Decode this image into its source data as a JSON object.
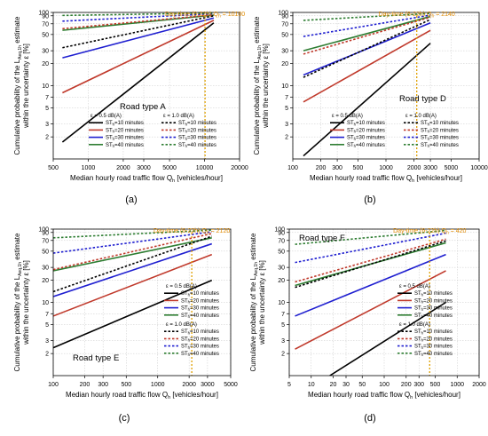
{
  "chart_data": [
    {
      "type": "line",
      "panel_label": "(a)",
      "road_type": "Road type A",
      "annotation": "Day-time (6-22h) Q",
      "annotation_sub": "h",
      "annotation_value": "= 10100",
      "marker_x": 10100,
      "xlabel": "Median hourly road traffic flow Q",
      "xlabel_sub": "h",
      "xlabel_unit": "[vehicles/hour]",
      "ylabel": "Cumulative probability of the L",
      "ylabel_sub": "Aeq,1h",
      "ylabel_2": "estimate",
      "ylabel_line2": "within the uncertainty ε [%]",
      "xscale": "log",
      "yscale": "log",
      "xlim": [
        500,
        20000
      ],
      "ylim": [
        1,
        100
      ],
      "xticks": [
        500,
        1000,
        2000,
        3000,
        5000,
        10000,
        20000
      ],
      "yticks": [
        2,
        3,
        5,
        7,
        10,
        20,
        30,
        50,
        70,
        90,
        100
      ],
      "legend_groups": [
        {
          "header": "ε = 0.5 dB(A)",
          "dash": "solid",
          "entries": [
            {
              "label": "ST=10 minutes",
              "color": "#000000",
              "x": [
                600,
                12000
              ],
              "y": [
                1.7,
                72
              ]
            },
            {
              "label": "ST=20 minutes",
              "color": "#c0392b",
              "x": [
                600,
                12000
              ],
              "y": [
                8,
                78
              ]
            },
            {
              "label": "ST=30 minutes",
              "color": "#1f1fd0",
              "x": [
                600,
                12000
              ],
              "y": [
                24,
                84
              ]
            },
            {
              "label": "ST=40 minutes",
              "color": "#2e7d32",
              "x": [
                600,
                12000
              ],
              "y": [
                57,
                92
              ]
            }
          ]
        },
        {
          "header": "ε = 1.0 dB(A)",
          "dash": "dash",
          "entries": [
            {
              "label": "ST=10 minutes",
              "color": "#000000",
              "x": [
                600,
                12000
              ],
              "y": [
                33,
                90
              ]
            },
            {
              "label": "ST=20 minutes",
              "color": "#c0392b",
              "x": [
                600,
                12000
              ],
              "y": [
                60,
                93
              ]
            },
            {
              "label": "ST=30 minutes",
              "color": "#1f1fd0",
              "x": [
                600,
                12000
              ],
              "y": [
                76,
                96
              ]
            },
            {
              "label": "ST=40 minutes",
              "color": "#2e7d32",
              "x": [
                600,
                12000
              ],
              "y": [
                91,
                98
              ]
            }
          ]
        }
      ]
    },
    {
      "type": "line",
      "panel_label": "(b)",
      "road_type": "Road type D",
      "annotation": "Day-time (6-22h) Q",
      "annotation_sub": "h",
      "annotation_value": "= 2140",
      "marker_x": 2140,
      "xlabel": "Median hourly road traffic flow Q",
      "xlabel_sub": "h",
      "xlabel_unit": "[vehicles/hour]",
      "ylabel": "Cumulative probability of the L",
      "ylabel_sub": "Aeq,1h",
      "ylabel_2": "estimate",
      "ylabel_line2": "within the uncertainty ε [%]",
      "xscale": "log",
      "yscale": "log",
      "xlim": [
        100,
        10000
      ],
      "ylim": [
        1,
        100
      ],
      "xticks": [
        100,
        200,
        300,
        500,
        1000,
        2000,
        3000,
        5000,
        10000
      ],
      "yticks": [
        2,
        3,
        5,
        7,
        10,
        20,
        30,
        50,
        70,
        90,
        100
      ],
      "legend_groups": [
        {
          "header": "ε = 0.5 dB(A)",
          "dash": "solid",
          "entries": [
            {
              "label": "ST=10 minutes",
              "color": "#000000",
              "x": [
                130,
                3000
              ],
              "y": [
                1.1,
                38
              ]
            },
            {
              "label": "ST=20 minutes",
              "color": "#c0392b",
              "x": [
                130,
                3000
              ],
              "y": [
                6,
                57
              ]
            },
            {
              "label": "ST=30 minutes",
              "color": "#1f1fd0",
              "x": [
                130,
                3000
              ],
              "y": [
                14,
                72
              ]
            },
            {
              "label": "ST=40 minutes",
              "color": "#2e7d32",
              "x": [
                130,
                3000
              ],
              "y": [
                30,
                88
              ]
            }
          ]
        },
        {
          "header": "ε = 1.0 dB(A)",
          "dash": "dash",
          "entries": [
            {
              "label": "ST=10 minutes",
              "color": "#000000",
              "x": [
                130,
                3000
              ],
              "y": [
                13,
                80
              ]
            },
            {
              "label": "ST=20 minutes",
              "color": "#c0392b",
              "x": [
                130,
                3000
              ],
              "y": [
                27,
                86
              ]
            },
            {
              "label": "ST=30 minutes",
              "color": "#1f1fd0",
              "x": [
                130,
                3000
              ],
              "y": [
                47,
                92
              ]
            },
            {
              "label": "ST=40 minutes",
              "color": "#2e7d32",
              "x": [
                130,
                3000
              ],
              "y": [
                78,
                97
              ]
            }
          ]
        }
      ]
    },
    {
      "type": "line",
      "panel_label": "(c)",
      "road_type": "Road type E",
      "annotation": "Day-time (6-22h) Q",
      "annotation_sub": "h",
      "annotation_value": "= 2120",
      "marker_x": 2120,
      "xlabel": "Median hourly road traffic flow Q",
      "xlabel_sub": "h",
      "xlabel_unit": "[vehicles/hour]",
      "ylabel": "Cumulative probability of the L",
      "ylabel_sub": "Aeq,1h",
      "ylabel_2": "estimate",
      "ylabel_line2": "within the uncertainty ε [%]",
      "xscale": "log",
      "yscale": "log",
      "xlim": [
        100,
        5000
      ],
      "ylim": [
        1,
        100
      ],
      "xticks": [
        100,
        200,
        300,
        500,
        1000,
        2000,
        3000,
        5000
      ],
      "yticks": [
        2,
        3,
        5,
        7,
        10,
        20,
        30,
        50,
        70,
        90,
        100
      ],
      "legend_groups": [
        {
          "header": "ε = 0.5 dB(A)",
          "dash": "solid",
          "entries": [
            {
              "label": "ST=10 minutes",
              "color": "#000000",
              "x": [
                100,
                3300
              ],
              "y": [
                2.4,
                20
              ]
            },
            {
              "label": "ST=20 minutes",
              "color": "#c0392b",
              "x": [
                100,
                3300
              ],
              "y": [
                6.5,
                45
              ]
            },
            {
              "label": "ST=30 minutes",
              "color": "#1f1fd0",
              "x": [
                100,
                3300
              ],
              "y": [
                12,
                63
              ]
            },
            {
              "label": "ST=40 minutes",
              "color": "#2e7d32",
              "x": [
                100,
                3300
              ],
              "y": [
                27,
                76
              ]
            }
          ]
        },
        {
          "header": "ε = 1.0 dB(A)",
          "dash": "dash",
          "entries": [
            {
              "label": "ST=10 minutes",
              "color": "#000000",
              "x": [
                100,
                3300
              ],
              "y": [
                14,
                80
              ]
            },
            {
              "label": "ST=20 minutes",
              "color": "#c0392b",
              "x": [
                100,
                3300
              ],
              "y": [
                28,
                87
              ]
            },
            {
              "label": "ST=30 minutes",
              "color": "#1f1fd0",
              "x": [
                100,
                3300
              ],
              "y": [
                47,
                92
              ]
            },
            {
              "label": "ST=40 minutes",
              "color": "#2e7d32",
              "x": [
                100,
                3300
              ],
              "y": [
                76,
                97
              ]
            }
          ]
        }
      ]
    },
    {
      "type": "line",
      "panel_label": "(d)",
      "road_type": "Road type F",
      "annotation": "Day-time (6-22h) Q",
      "annotation_sub": "h",
      "annotation_value": "= 420",
      "marker_x": 420,
      "xlabel": "Median hourly road traffic flow Q",
      "xlabel_sub": "h",
      "xlabel_unit": "[vehicles/hour]",
      "ylabel": "Cumulative probability of the L",
      "ylabel_sub": "Aeq,1h",
      "ylabel_2": "estimate",
      "ylabel_line2": "within the uncertainty ε [%]",
      "xscale": "log",
      "yscale": "log",
      "xlim": [
        5,
        2000
      ],
      "ylim": [
        1,
        100
      ],
      "xticks": [
        5,
        10,
        20,
        30,
        50,
        100,
        200,
        300,
        500,
        1000,
        2000
      ],
      "yticks": [
        2,
        3,
        5,
        7,
        10,
        20,
        30,
        50,
        70,
        90,
        100
      ],
      "legend_groups": [
        {
          "header": "ε = 0.5 dB(A)",
          "dash": "solid",
          "entries": [
            {
              "label": "ST=10 minutes",
              "color": "#000000",
              "x": [
                18,
                700
              ],
              "y": [
                1,
                10
              ]
            },
            {
              "label": "ST=20 minutes",
              "color": "#c0392b",
              "x": [
                6,
                700
              ],
              "y": [
                2.3,
                27
              ]
            },
            {
              "label": "ST=30 minutes",
              "color": "#1f1fd0",
              "x": [
                6,
                700
              ],
              "y": [
                6.5,
                45
              ]
            },
            {
              "label": "ST=40 minutes",
              "color": "#2e7d32",
              "x": [
                6,
                700
              ],
              "y": [
                17,
                65
              ]
            }
          ]
        },
        {
          "header": "ε = 1.0 dB(A)",
          "dash": "dash",
          "entries": [
            {
              "label": "ST=10 minutes",
              "color": "#000000",
              "x": [
                6,
                700
              ],
              "y": [
                16,
                69
              ]
            },
            {
              "label": "ST=20 minutes",
              "color": "#c0392b",
              "x": [
                6,
                700
              ],
              "y": [
                19,
                73
              ]
            },
            {
              "label": "ST=30 minutes",
              "color": "#1f1fd0",
              "x": [
                6,
                700
              ],
              "y": [
                35,
                88
              ]
            },
            {
              "label": "ST=40 minutes",
              "color": "#2e7d32",
              "x": [
                6,
                700
              ],
              "y": [
                62,
                96
              ]
            }
          ]
        }
      ]
    }
  ]
}
